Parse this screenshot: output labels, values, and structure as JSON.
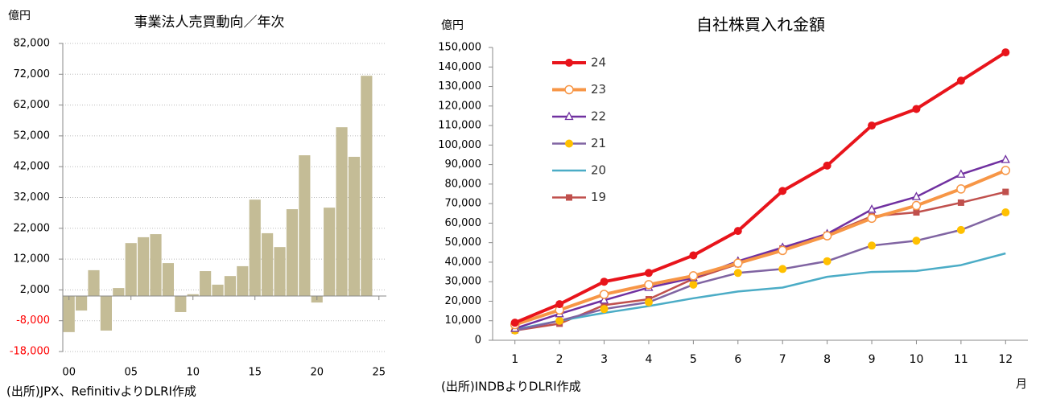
{
  "chart_data": [
    {
      "type": "bar",
      "title": "事業法人売買動向／年次",
      "y_label": "億円",
      "note": "(出所)JPX、RefinitivよりDLRI作成",
      "x": [
        0,
        1,
        2,
        3,
        4,
        5,
        6,
        7,
        8,
        9,
        10,
        11,
        12,
        13,
        14,
        15,
        16,
        17,
        18,
        19,
        20,
        21,
        22,
        23,
        24
      ],
      "values": [
        -11700,
        -4700,
        8400,
        -11200,
        2600,
        17200,
        19100,
        20100,
        10700,
        -5200,
        600,
        8100,
        3700,
        6500,
        9700,
        31300,
        20400,
        15900,
        28200,
        45700,
        -2100,
        28700,
        54800,
        45200,
        71500
      ],
      "color": "#c4bc96",
      "xlim": [
        -0.5,
        25.6
      ],
      "xticks": [
        {
          "value": 0,
          "label": "00"
        },
        {
          "value": 5,
          "label": "05"
        },
        10,
        15,
        20,
        25
      ],
      "ylim": [
        -18000,
        82000
      ],
      "yticks": [
        {
          "value": -18000,
          "label": "-18,000"
        },
        {
          "value": -8000,
          "label": "-8,000"
        },
        {
          "value": 2000,
          "label": "2,000"
        },
        {
          "value": 12000,
          "label": "12,000"
        },
        {
          "value": 22000,
          "label": "22,000"
        },
        {
          "value": 32000,
          "label": "32,000"
        },
        {
          "value": 42000,
          "label": "42,000"
        },
        {
          "value": 52000,
          "label": "52,000"
        },
        {
          "value": 62000,
          "label": "62,000"
        },
        {
          "value": 72000,
          "label": "72,000"
        },
        {
          "value": 82000,
          "label": "82,000"
        }
      ],
      "negative_tick_color": "#ff0000",
      "grid": true
    },
    {
      "type": "line",
      "title": "自社株買入れ金額",
      "y_label": "億円",
      "x_label": "月",
      "note": "(出所)INDBよりDLRI作成",
      "x": [
        1,
        2,
        3,
        4,
        5,
        6,
        7,
        8,
        9,
        10,
        11,
        12
      ],
      "series": [
        {
          "name": "24",
          "color": "#e8141b",
          "line_width": 4,
          "marker": "circle",
          "values": [
            9000,
            18500,
            30000,
            34500,
            43500,
            56000,
            76500,
            89500,
            110000,
            118500,
            133000,
            147500
          ]
        },
        {
          "name": "23",
          "color": "#f79646",
          "line_width": 4,
          "marker": "circle-open",
          "values": [
            8000,
            15500,
            23500,
            28500,
            33000,
            39500,
            46000,
            53500,
            62500,
            69000,
            77500,
            87000
          ]
        },
        {
          "name": "22",
          "color": "#7030a0",
          "line_width": 2.5,
          "marker": "triangle-open",
          "values": [
            6000,
            13500,
            20500,
            27000,
            32000,
            40500,
            47500,
            54500,
            67000,
            73500,
            85000,
            92500
          ]
        },
        {
          "name": "21",
          "color": "#8064a2",
          "line_width": 2.5,
          "marker": "circle",
          "marker_color": "#ffc000",
          "values": [
            5000,
            10000,
            16000,
            19500,
            28500,
            34500,
            36500,
            40500,
            48500,
            51000,
            56500,
            65500
          ]
        },
        {
          "name": "20",
          "color": "#4bacc6",
          "line_width": 2.5,
          "marker": "none",
          "values": [
            5500,
            10000,
            14000,
            17500,
            21500,
            25000,
            27000,
            32500,
            35000,
            35500,
            38500,
            44500
          ]
        },
        {
          "name": "19",
          "color": "#c0504d",
          "line_width": 2.5,
          "marker": "square",
          "values": [
            5000,
            8500,
            18000,
            21000,
            31500,
            39000,
            47000,
            54000,
            63500,
            65500,
            70500,
            76000
          ]
        }
      ],
      "xlim": [
        0.5,
        12.5
      ],
      "xticks": [
        1,
        2,
        3,
        4,
        5,
        6,
        7,
        8,
        9,
        10,
        11,
        12
      ],
      "ylim": [
        0,
        150000
      ],
      "yticks": [
        0,
        {
          "value": 10000,
          "label": "10,000"
        },
        {
          "value": 20000,
          "label": "20,000"
        },
        {
          "value": 30000,
          "label": "30,000"
        },
        {
          "value": 40000,
          "label": "40,000"
        },
        {
          "value": 50000,
          "label": "50,000"
        },
        {
          "value": 60000,
          "label": "60,000"
        },
        {
          "value": 70000,
          "label": "70,000"
        },
        {
          "value": 80000,
          "label": "80,000"
        },
        {
          "value": 90000,
          "label": "90,000"
        },
        {
          "value": 100000,
          "label": "100,000"
        },
        {
          "value": 110000,
          "label": "110,000"
        },
        {
          "value": 120000,
          "label": "120,000"
        },
        {
          "value": 130000,
          "label": "130,000"
        },
        {
          "value": 140000,
          "label": "140,000"
        },
        {
          "value": 150000,
          "label": "150,000"
        }
      ],
      "legend": "top-left",
      "grid": false
    }
  ]
}
